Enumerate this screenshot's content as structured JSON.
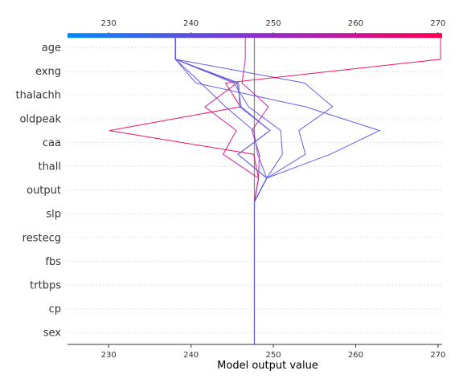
{
  "chart_data": {
    "type": "line",
    "title": "",
    "xlabel": "Model output value",
    "ylabel": "",
    "xlim": [
      225,
      270.5
    ],
    "base_value": 247.7,
    "x_ticks": [
      230,
      240,
      250,
      260,
      270
    ],
    "colorbar": {
      "range": [
        225,
        270.5
      ],
      "low_color": "#008bfb",
      "high_color": "#ff0051",
      "position": "top"
    },
    "grid": "dotted horizontal",
    "features": [
      "sex",
      "cp",
      "trtbps",
      "fbs",
      "restecg",
      "slp",
      "output",
      "thall",
      "caa",
      "oldpeak",
      "thalachh",
      "exng",
      "age"
    ],
    "series": [
      {
        "color": "#5c56e0",
        "values": [
          247.7,
          247.7,
          247.7,
          247.7,
          247.7,
          247.7,
          247.7,
          249.2,
          253.9,
          253.1,
          257.2,
          253.8,
          238.1
        ]
      },
      {
        "color": "#d4109c",
        "values": [
          247.7,
          247.7,
          247.7,
          247.7,
          247.7,
          247.7,
          247.7,
          248.2,
          243.9,
          245.5,
          241.7,
          245.6,
          238.1
        ]
      },
      {
        "color": "#ee0562",
        "values": [
          247.7,
          247.7,
          247.7,
          247.7,
          247.7,
          247.7,
          247.7,
          248.2,
          247.6,
          230.1,
          246.0,
          244.2,
          270.3
        ]
      },
      {
        "color": "#c71aa3",
        "values": [
          247.7,
          247.7,
          247.7,
          247.7,
          247.7,
          247.7,
          247.7,
          248.2,
          248.3,
          247.4,
          249.4,
          246.2,
          246.6
        ]
      },
      {
        "color": "#5c56e0",
        "values": [
          247.7,
          247.7,
          247.7,
          247.7,
          247.7,
          247.7,
          247.7,
          249.2,
          256.9,
          262.9,
          253.9,
          240.6,
          238.1
        ]
      },
      {
        "color": "#5c56e0",
        "values": [
          247.7,
          247.7,
          247.7,
          247.7,
          247.7,
          247.7,
          247.7,
          249.2,
          248.1,
          247.6,
          244.2,
          241.2,
          238.1
        ]
      },
      {
        "color": "#5c56e0",
        "values": [
          247.7,
          247.7,
          247.7,
          247.7,
          247.7,
          247.7,
          247.7,
          249.2,
          251.1,
          250.9,
          247.0,
          245.2,
          238.1
        ]
      },
      {
        "color": "#5c56e0",
        "values": [
          247.7,
          247.7,
          247.7,
          247.7,
          247.7,
          247.7,
          247.7,
          249.2,
          245.7,
          249.6,
          245.9,
          245.8,
          238.1
        ]
      },
      {
        "color": "#5c56e0",
        "values": [
          247.7,
          247.7,
          247.7,
          247.7,
          247.7,
          247.7,
          247.7,
          249.2,
          245.7,
          249.6,
          246.1,
          245.6,
          238.1
        ]
      }
    ]
  }
}
